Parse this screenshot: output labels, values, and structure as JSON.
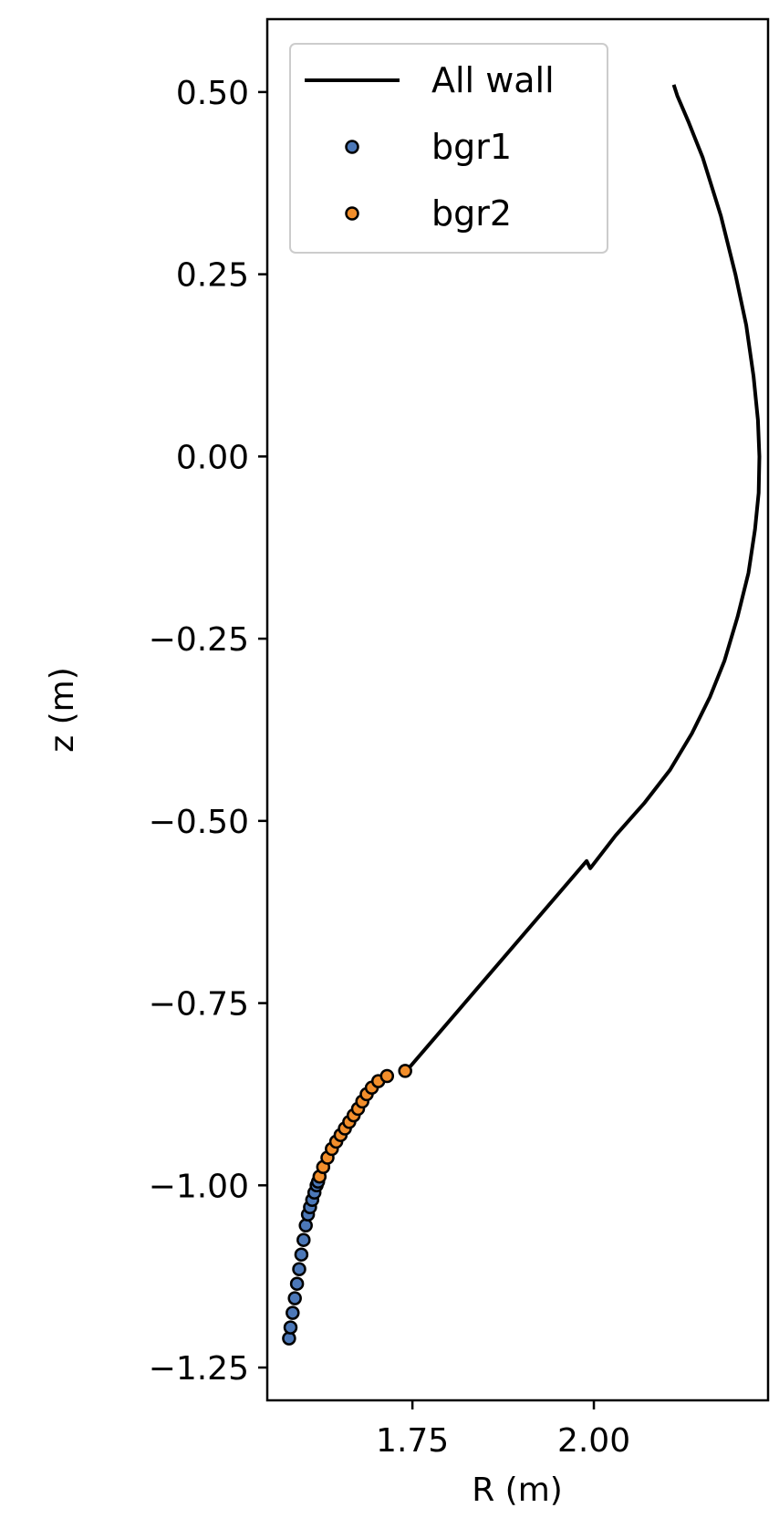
{
  "chart_data": {
    "type": "scatter",
    "xlabel": "R (m)",
    "ylabel": "z (m)",
    "xlim": [
      1.55,
      2.24
    ],
    "ylim": [
      -1.295,
      0.6
    ],
    "xticks": [
      {
        "value": 1.75,
        "label": "1.75"
      },
      {
        "value": 2.0,
        "label": "2.00"
      }
    ],
    "yticks": [
      {
        "value": 0.5,
        "label": "0.50"
      },
      {
        "value": 0.25,
        "label": "0.25"
      },
      {
        "value": 0.0,
        "label": "0.00"
      },
      {
        "value": -0.25,
        "label": "−0.25"
      },
      {
        "value": -0.5,
        "label": "−0.50"
      },
      {
        "value": -0.75,
        "label": "−0.75"
      },
      {
        "value": -1.0,
        "label": "−1.00"
      },
      {
        "value": -1.25,
        "label": "−1.25"
      }
    ],
    "grid": false,
    "legend_position": "top-left",
    "series": [
      {
        "name": "All wall",
        "kind": "line",
        "color": "#000000",
        "x": [
          2.11,
          2.115,
          2.13,
          2.15,
          2.175,
          2.195,
          2.21,
          2.22,
          2.226,
          2.228,
          2.227,
          2.222,
          2.213,
          2.198,
          2.18,
          2.16,
          2.135,
          2.105,
          2.07,
          2.03,
          1.995,
          1.99,
          1.74
        ],
        "z": [
          0.51,
          0.495,
          0.46,
          0.41,
          0.33,
          0.25,
          0.18,
          0.11,
          0.05,
          0.0,
          -0.05,
          -0.1,
          -0.16,
          -0.22,
          -0.28,
          -0.33,
          -0.38,
          -0.43,
          -0.475,
          -0.52,
          -0.565,
          -0.555,
          -0.845
        ]
      },
      {
        "name": "bgr1",
        "kind": "scatter",
        "color": "#4c78b8",
        "x": [
          1.58,
          1.582,
          1.585,
          1.588,
          1.591,
          1.594,
          1.597,
          1.6,
          1.603,
          1.606,
          1.609,
          1.612,
          1.615,
          1.618,
          1.62
        ],
        "z": [
          -1.21,
          -1.195,
          -1.175,
          -1.155,
          -1.135,
          -1.115,
          -1.095,
          -1.075,
          -1.055,
          -1.04,
          -1.03,
          -1.02,
          -1.01,
          -1.0,
          -0.995
        ]
      },
      {
        "name": "bgr2",
        "kind": "scatter",
        "color": "#f28e2b",
        "x": [
          1.622,
          1.627,
          1.633,
          1.639,
          1.645,
          1.651,
          1.657,
          1.663,
          1.669,
          1.675,
          1.681,
          1.687,
          1.694,
          1.703,
          1.715,
          1.74
        ],
        "z": [
          -0.988,
          -0.975,
          -0.962,
          -0.95,
          -0.94,
          -0.931,
          -0.922,
          -0.913,
          -0.904,
          -0.895,
          -0.885,
          -0.875,
          -0.866,
          -0.857,
          -0.85,
          -0.843
        ]
      }
    ]
  }
}
